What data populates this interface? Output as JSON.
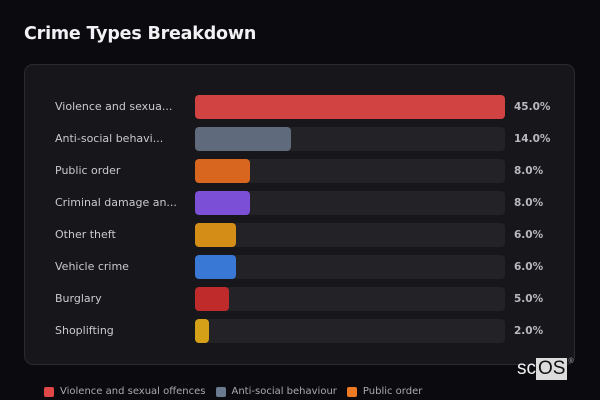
{
  "title": "Crime Types Breakdown",
  "chart_data": {
    "type": "bar",
    "orientation": "horizontal",
    "title": "Crime Types Breakdown",
    "categories": [
      "Violence and sexual offences",
      "Anti-social behaviour",
      "Public order",
      "Criminal damage and arson",
      "Other theft",
      "Vehicle crime",
      "Burglary",
      "Shoplifting"
    ],
    "display_labels": [
      "Violence and sexua...",
      "Anti-social behavi...",
      "Public order",
      "Criminal damage an...",
      "Other theft",
      "Vehicle crime",
      "Burglary",
      "Shoplifting"
    ],
    "values": [
      45.0,
      14.0,
      8.0,
      8.0,
      6.0,
      6.0,
      5.0,
      2.0
    ],
    "value_labels": [
      "45.0%",
      "14.0%",
      "8.0%",
      "8.0%",
      "6.0%",
      "6.0%",
      "5.0%",
      "2.0%"
    ],
    "colors": [
      "#d14343",
      "#5f6b7d",
      "#d9661f",
      "#7b4fd6",
      "#d48d17",
      "#3a78d6",
      "#bf2a2a",
      "#d4a017"
    ],
    "xlim": [
      0,
      45
    ],
    "grid": false,
    "legend_position": "bottom"
  },
  "legend": [
    {
      "label": "Violence and sexual offences",
      "color": "#e04848"
    },
    {
      "label": "Anti-social behaviour",
      "color": "#6b7a90"
    },
    {
      "label": "Public order",
      "color": "#f07a22"
    }
  ],
  "watermark": {
    "prefix": "sc",
    "boxed": "OS",
    "mark": "®"
  }
}
